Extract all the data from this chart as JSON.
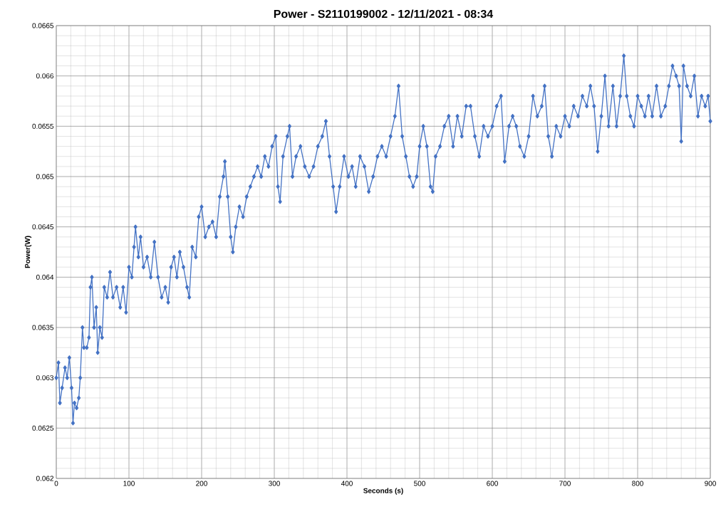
{
  "chart_data": {
    "type": "line",
    "title": "Power - S2110199002 - 12/11/2021 - 08:34",
    "xlabel": "Seconds (s)",
    "ylabel": "Power(W)",
    "xlim": [
      0,
      900
    ],
    "xticks": [
      0,
      100,
      200,
      300,
      400,
      500,
      600,
      700,
      800,
      900
    ],
    "ylim": [
      0.062,
      0.0665
    ],
    "yticks": [
      0.062,
      0.0625,
      0.063,
      0.0635,
      0.064,
      0.0645,
      0.065,
      0.0655,
      0.066,
      0.0665
    ],
    "grid": true,
    "marker": "diamond",
    "line_style": "solid",
    "series": [
      {
        "color": "#4472c4",
        "x": [
          0,
          3,
          5,
          8,
          12,
          15,
          18,
          21,
          23,
          25,
          28,
          31,
          33,
          36,
          38,
          42,
          45,
          47,
          49,
          52,
          55,
          57,
          60,
          63,
          66,
          70,
          74,
          78,
          83,
          88,
          92,
          96,
          100,
          104,
          107,
          109,
          113,
          116,
          120,
          125,
          130,
          135,
          140,
          145,
          150,
          154,
          158,
          162,
          166,
          170,
          175,
          180,
          183,
          187,
          192,
          196,
          200,
          205,
          210,
          215,
          220,
          225,
          230,
          232,
          236,
          240,
          243,
          247,
          252,
          257,
          262,
          267,
          272,
          277,
          282,
          287,
          292,
          297,
          302,
          305,
          308,
          312,
          318,
          321,
          325,
          330,
          336,
          342,
          348,
          354,
          360,
          366,
          371,
          376,
          381,
          385,
          390,
          396,
          402,
          407,
          412,
          418,
          424,
          430,
          436,
          442,
          448,
          454,
          460,
          466,
          471,
          476,
          481,
          486,
          491,
          496,
          500,
          505,
          510,
          515,
          518,
          522,
          528,
          534,
          540,
          546,
          552,
          558,
          564,
          570,
          576,
          582,
          588,
          594,
          600,
          606,
          612,
          617,
          623,
          628,
          633,
          638,
          644,
          650,
          656,
          662,
          668,
          672,
          677,
          682,
          688,
          694,
          700,
          706,
          712,
          718,
          724,
          730,
          735,
          740,
          745,
          750,
          755,
          760,
          766,
          771,
          776,
          781,
          785,
          790,
          795,
          800,
          805,
          810,
          815,
          820,
          826,
          832,
          838,
          843,
          848,
          853,
          857,
          860,
          863,
          868,
          873,
          878,
          883,
          888,
          893,
          897,
          900
        ],
        "values": [
          0.063,
          0.06315,
          0.06275,
          0.0629,
          0.0631,
          0.063,
          0.0632,
          0.0629,
          0.06255,
          0.06275,
          0.0627,
          0.0628,
          0.063,
          0.0635,
          0.0633,
          0.0633,
          0.0634,
          0.0639,
          0.064,
          0.0635,
          0.0637,
          0.06325,
          0.0635,
          0.0634,
          0.0639,
          0.0638,
          0.06405,
          0.0638,
          0.0639,
          0.0637,
          0.0639,
          0.06365,
          0.0641,
          0.064,
          0.0643,
          0.0645,
          0.0642,
          0.0644,
          0.0641,
          0.0642,
          0.064,
          0.06435,
          0.064,
          0.0638,
          0.0639,
          0.06375,
          0.0641,
          0.0642,
          0.064,
          0.06425,
          0.0641,
          0.0639,
          0.0638,
          0.0643,
          0.0642,
          0.0646,
          0.0647,
          0.0644,
          0.0645,
          0.06455,
          0.0644,
          0.0648,
          0.065,
          0.06515,
          0.0648,
          0.0644,
          0.06425,
          0.0645,
          0.0647,
          0.0646,
          0.0648,
          0.0649,
          0.065,
          0.0651,
          0.065,
          0.0652,
          0.0651,
          0.0653,
          0.0654,
          0.0649,
          0.06475,
          0.0652,
          0.0654,
          0.0655,
          0.065,
          0.0652,
          0.0653,
          0.0651,
          0.065,
          0.0651,
          0.0653,
          0.0654,
          0.06555,
          0.0652,
          0.0649,
          0.06465,
          0.0649,
          0.0652,
          0.065,
          0.0651,
          0.0649,
          0.0652,
          0.0651,
          0.06485,
          0.065,
          0.0652,
          0.0653,
          0.0652,
          0.0654,
          0.0656,
          0.0659,
          0.0654,
          0.0652,
          0.065,
          0.0649,
          0.065,
          0.0653,
          0.0655,
          0.0653,
          0.0649,
          0.06485,
          0.0652,
          0.0653,
          0.0655,
          0.0656,
          0.0653,
          0.0656,
          0.0654,
          0.0657,
          0.0657,
          0.0654,
          0.0652,
          0.0655,
          0.0654,
          0.0655,
          0.0657,
          0.0658,
          0.06515,
          0.0655,
          0.0656,
          0.0655,
          0.0653,
          0.0652,
          0.0654,
          0.0658,
          0.0656,
          0.0657,
          0.0659,
          0.0654,
          0.0652,
          0.0655,
          0.0654,
          0.0656,
          0.0655,
          0.0657,
          0.0656,
          0.0658,
          0.0657,
          0.0659,
          0.0657,
          0.06525,
          0.0656,
          0.066,
          0.0655,
          0.0659,
          0.0655,
          0.0658,
          0.0662,
          0.0658,
          0.0656,
          0.0655,
          0.0658,
          0.0657,
          0.0656,
          0.0658,
          0.0656,
          0.0659,
          0.0656,
          0.0657,
          0.0659,
          0.0661,
          0.066,
          0.0659,
          0.06535,
          0.0661,
          0.0659,
          0.0658,
          0.066,
          0.0656,
          0.0658,
          0.0657,
          0.0658,
          0.06555
        ]
      }
    ]
  }
}
